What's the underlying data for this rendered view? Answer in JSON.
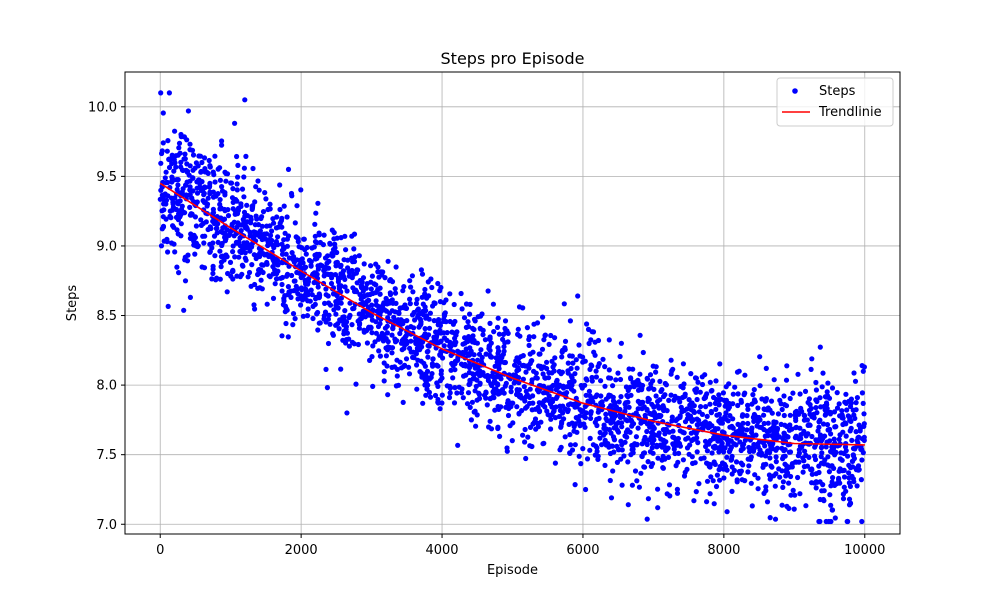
{
  "chart_data": {
    "type": "scatter",
    "title": "Steps pro Episode",
    "xlabel": "Episode",
    "ylabel": "Steps",
    "xlim": [
      -500,
      10500
    ],
    "ylim": [
      6.93,
      10.25
    ],
    "x_ticks": [
      0,
      2000,
      4000,
      6000,
      8000,
      10000
    ],
    "y_ticks": [
      7.0,
      7.5,
      8.0,
      8.5,
      9.0,
      9.5,
      10.0
    ],
    "grid": true,
    "legend_position": "top-right",
    "series": [
      {
        "name": "Steps",
        "kind": "scatter",
        "color": "#0000ff",
        "x_range": [
          0,
          10000
        ],
        "approx_mean_curve": [
          {
            "x": 0,
            "y": 9.45
          },
          {
            "x": 1000,
            "y": 9.15
          },
          {
            "x": 2000,
            "y": 8.82
          },
          {
            "x": 3000,
            "y": 8.5
          },
          {
            "x": 4000,
            "y": 8.25
          },
          {
            "x": 5000,
            "y": 8.05
          },
          {
            "x": 6000,
            "y": 7.87
          },
          {
            "x": 7000,
            "y": 7.73
          },
          {
            "x": 8000,
            "y": 7.65
          },
          {
            "x": 9000,
            "y": 7.58
          },
          {
            "x": 10000,
            "y": 7.57
          }
        ],
        "approx_spread": 0.25,
        "min_value": 7.02,
        "max_value": 10.1,
        "notable_points": [
          {
            "x": 130,
            "y": 10.1
          },
          {
            "x": 1200,
            "y": 10.05
          },
          {
            "x": 400,
            "y": 9.97
          },
          {
            "x": 2650,
            "y": 7.8
          },
          {
            "x": 9520,
            "y": 7.02
          }
        ]
      },
      {
        "name": "Trendlinie",
        "kind": "line",
        "color": "#ff0000",
        "x": [
          0,
          1000,
          2000,
          3000,
          4000,
          5000,
          6000,
          7000,
          8000,
          9000,
          10000
        ],
        "y": [
          9.45,
          9.13,
          8.82,
          8.52,
          8.26,
          8.05,
          7.87,
          7.74,
          7.64,
          7.58,
          7.57
        ]
      }
    ]
  }
}
